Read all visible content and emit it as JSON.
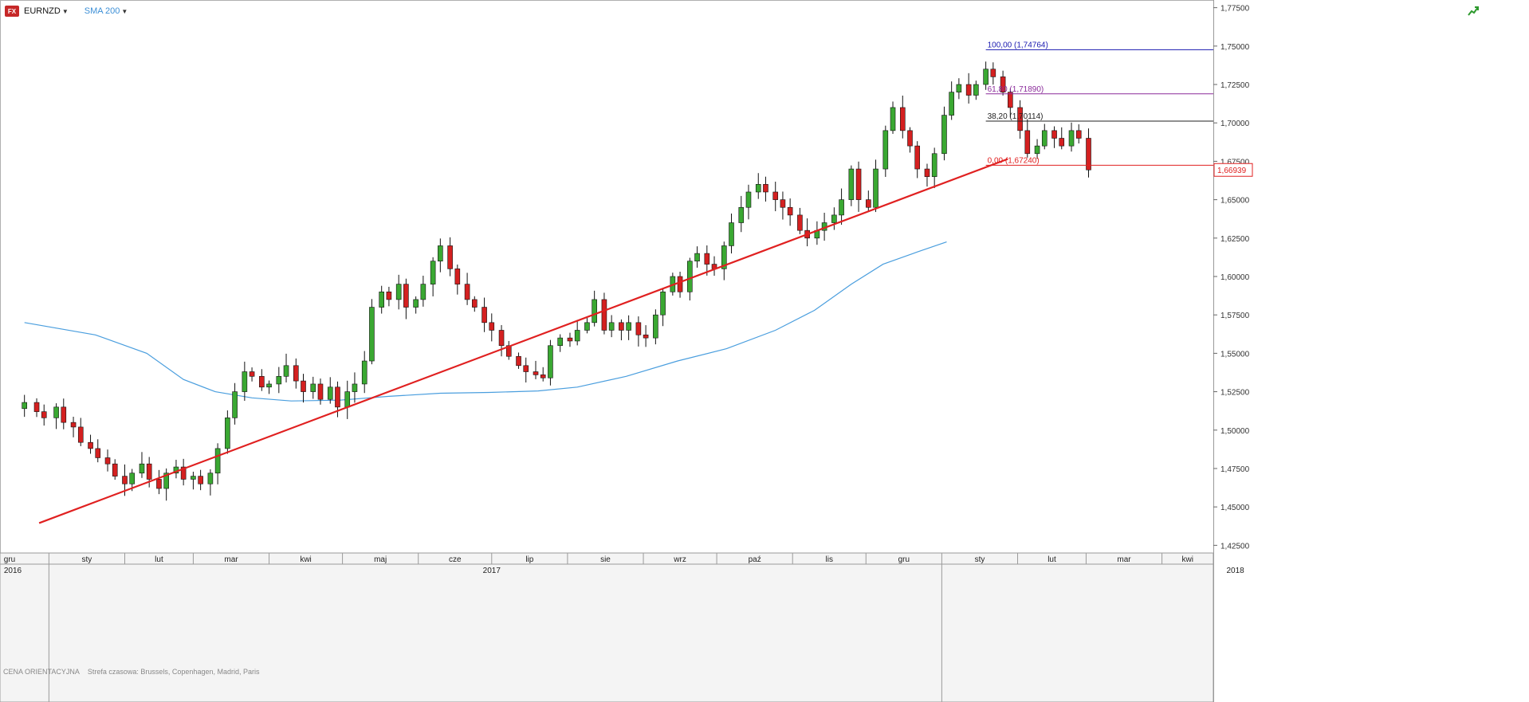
{
  "toolbar": {
    "fx_badge": "FX",
    "symbol": "EURNZD",
    "indicator": "SMA 200"
  },
  "footer": {
    "price_mode": "CENA ORIENTACYJNA",
    "timezone": "Strefa czasowa: Brussels, Copenhagen, Madrid, Paris"
  },
  "colors": {
    "bull": "#3aa832",
    "bear": "#d42020",
    "sma": "#4a9ede",
    "trendline": "#e02020",
    "fib_100": "#1a1ab0",
    "fib_618": "#8a2a9a",
    "fib_382": "#222222",
    "fib_0": "#e02020",
    "price_tag": "#e02020"
  },
  "chart_data": {
    "type": "candlestick",
    "ylim": [
      1.42,
      1.78
    ],
    "y_ticks": [
      "1,42500",
      "1,45000",
      "1,47500",
      "1,50000",
      "1,52500",
      "1,55000",
      "1,57500",
      "1,60000",
      "1,62500",
      "1,65000",
      "1,67500",
      "1,70000",
      "1,72500",
      "1,75000",
      "1,77500"
    ],
    "last_price": "1,66939",
    "fibonacci": [
      {
        "label": "100,00 (1,74764)",
        "value": 1.74764,
        "color": "#1a1ab0"
      },
      {
        "label": "61,80 (1,71890)",
        "value": 1.7189,
        "color": "#8a2a9a"
      },
      {
        "label": "38,20 (1,70114)",
        "value": 1.70114,
        "color": "#222222"
      },
      {
        "label": "0,00 (1,67240)",
        "value": 1.6724,
        "color": "#e02020"
      }
    ],
    "trendline": {
      "from": {
        "date": "2016-12-28",
        "value": 1.4395
      },
      "to": {
        "date": "2018-01-28",
        "value": 1.6765
      }
    },
    "sma": [
      [
        "2016-12-22",
        1.57
      ],
      [
        "2017-01-20",
        1.562
      ],
      [
        "2017-02-10",
        1.55
      ],
      [
        "2017-02-25",
        1.533
      ],
      [
        "2017-03-10",
        1.525
      ],
      [
        "2017-03-25",
        1.521
      ],
      [
        "2017-04-10",
        1.519
      ],
      [
        "2017-04-30",
        1.5195
      ],
      [
        "2017-05-20",
        1.522
      ],
      [
        "2017-06-10",
        1.524
      ],
      [
        "2017-06-30",
        1.5245
      ],
      [
        "2017-07-20",
        1.5255
      ],
      [
        "2017-08-05",
        1.528
      ],
      [
        "2017-08-25",
        1.535
      ],
      [
        "2017-09-15",
        1.545
      ],
      [
        "2017-10-05",
        1.553
      ],
      [
        "2017-10-25",
        1.565
      ],
      [
        "2017-11-10",
        1.578
      ],
      [
        "2017-11-25",
        1.595
      ],
      [
        "2017-12-08",
        1.608
      ],
      [
        "2017-12-22",
        1.616
      ],
      [
        "2018-01-03",
        1.6225
      ]
    ],
    "candles_close": [
      [
        "2016-12-22",
        1.518
      ],
      [
        "2016-12-27",
        1.512
      ],
      [
        "2016-12-30",
        1.508
      ],
      [
        "2017-01-04",
        1.515
      ],
      [
        "2017-01-07",
        1.505
      ],
      [
        "2017-01-11",
        1.502
      ],
      [
        "2017-01-14",
        1.492
      ],
      [
        "2017-01-18",
        1.488
      ],
      [
        "2017-01-21",
        1.482
      ],
      [
        "2017-01-25",
        1.478
      ],
      [
        "2017-01-28",
        1.47
      ],
      [
        "2017-02-01",
        1.465
      ],
      [
        "2017-02-04",
        1.472
      ],
      [
        "2017-02-08",
        1.478
      ],
      [
        "2017-02-11",
        1.468
      ],
      [
        "2017-02-15",
        1.462
      ],
      [
        "2017-02-18",
        1.472
      ],
      [
        "2017-02-22",
        1.476
      ],
      [
        "2017-02-25",
        1.468
      ],
      [
        "2017-03-01",
        1.47
      ],
      [
        "2017-03-04",
        1.465
      ],
      [
        "2017-03-08",
        1.472
      ],
      [
        "2017-03-11",
        1.488
      ],
      [
        "2017-03-15",
        1.508
      ],
      [
        "2017-03-18",
        1.525
      ],
      [
        "2017-03-22",
        1.538
      ],
      [
        "2017-03-25",
        1.535
      ],
      [
        "2017-03-29",
        1.528
      ],
      [
        "2017-04-01",
        1.53
      ],
      [
        "2017-04-05",
        1.535
      ],
      [
        "2017-04-08",
        1.542
      ],
      [
        "2017-04-12",
        1.532
      ],
      [
        "2017-04-15",
        1.525
      ],
      [
        "2017-04-19",
        1.53
      ],
      [
        "2017-04-22",
        1.52
      ],
      [
        "2017-04-26",
        1.528
      ],
      [
        "2017-04-29",
        1.515
      ],
      [
        "2017-05-03",
        1.525
      ],
      [
        "2017-05-06",
        1.53
      ],
      [
        "2017-05-10",
        1.545
      ],
      [
        "2017-05-13",
        1.58
      ],
      [
        "2017-05-17",
        1.59
      ],
      [
        "2017-05-20",
        1.585
      ],
      [
        "2017-05-24",
        1.595
      ],
      [
        "2017-05-27",
        1.58
      ],
      [
        "2017-05-31",
        1.585
      ],
      [
        "2017-06-03",
        1.595
      ],
      [
        "2017-06-07",
        1.61
      ],
      [
        "2017-06-10",
        1.62
      ],
      [
        "2017-06-14",
        1.605
      ],
      [
        "2017-06-17",
        1.595
      ],
      [
        "2017-06-21",
        1.585
      ],
      [
        "2017-06-24",
        1.58
      ],
      [
        "2017-06-28",
        1.57
      ],
      [
        "2017-07-01",
        1.565
      ],
      [
        "2017-07-05",
        1.555
      ],
      [
        "2017-07-08",
        1.548
      ],
      [
        "2017-07-12",
        1.542
      ],
      [
        "2017-07-15",
        1.538
      ],
      [
        "2017-07-19",
        1.536
      ],
      [
        "2017-07-22",
        1.534
      ],
      [
        "2017-07-25",
        1.555
      ],
      [
        "2017-07-29",
        1.56
      ],
      [
        "2017-08-02",
        1.558
      ],
      [
        "2017-08-05",
        1.565
      ],
      [
        "2017-08-09",
        1.57
      ],
      [
        "2017-08-12",
        1.585
      ],
      [
        "2017-08-16",
        1.565
      ],
      [
        "2017-08-19",
        1.57
      ],
      [
        "2017-08-23",
        1.565
      ],
      [
        "2017-08-26",
        1.57
      ],
      [
        "2017-08-30",
        1.562
      ],
      [
        "2017-09-02",
        1.56
      ],
      [
        "2017-09-06",
        1.575
      ],
      [
        "2017-09-09",
        1.59
      ],
      [
        "2017-09-13",
        1.6
      ],
      [
        "2017-09-16",
        1.59
      ],
      [
        "2017-09-20",
        1.61
      ],
      [
        "2017-09-23",
        1.615
      ],
      [
        "2017-09-27",
        1.608
      ],
      [
        "2017-09-30",
        1.605
      ],
      [
        "2017-10-04",
        1.62
      ],
      [
        "2017-10-07",
        1.635
      ],
      [
        "2017-10-11",
        1.645
      ],
      [
        "2017-10-14",
        1.655
      ],
      [
        "2017-10-18",
        1.66
      ],
      [
        "2017-10-21",
        1.655
      ],
      [
        "2017-10-25",
        1.65
      ],
      [
        "2017-10-28",
        1.645
      ],
      [
        "2017-10-31",
        1.64
      ],
      [
        "2017-11-04",
        1.63
      ],
      [
        "2017-11-07",
        1.625
      ],
      [
        "2017-11-11",
        1.63
      ],
      [
        "2017-11-14",
        1.635
      ],
      [
        "2017-11-18",
        1.64
      ],
      [
        "2017-11-21",
        1.65
      ],
      [
        "2017-11-25",
        1.67
      ],
      [
        "2017-11-28",
        1.65
      ],
      [
        "2017-12-02",
        1.645
      ],
      [
        "2017-12-05",
        1.67
      ],
      [
        "2017-12-09",
        1.695
      ],
      [
        "2017-12-12",
        1.71
      ],
      [
        "2017-12-16",
        1.695
      ],
      [
        "2017-12-19",
        1.685
      ],
      [
        "2017-12-22",
        1.67
      ],
      [
        "2017-12-26",
        1.665
      ],
      [
        "2017-12-29",
        1.68
      ],
      [
        "2018-01-02",
        1.705
      ],
      [
        "2018-01-05",
        1.72
      ],
      [
        "2018-01-08",
        1.725
      ],
      [
        "2018-01-12",
        1.718
      ],
      [
        "2018-01-15",
        1.725
      ],
      [
        "2018-01-19",
        1.735
      ],
      [
        "2018-01-22",
        1.73
      ],
      [
        "2018-01-26",
        1.72
      ],
      [
        "2018-01-29",
        1.71
      ],
      [
        "2018-02-02",
        1.695
      ],
      [
        "2018-02-05",
        1.68
      ],
      [
        "2018-02-09",
        1.685
      ],
      [
        "2018-02-12",
        1.695
      ],
      [
        "2018-02-16",
        1.69
      ],
      [
        "2018-02-19",
        1.685
      ],
      [
        "2018-02-23",
        1.695
      ],
      [
        "2018-02-26",
        1.69
      ],
      [
        "2018-03-02",
        1.6694
      ]
    ],
    "x_axis": {
      "months": [
        {
          "label": "gru",
          "date": "2016-12-15"
        },
        {
          "label": "sty",
          "date": "2017-01-01"
        },
        {
          "label": "lut",
          "date": "2017-02-01"
        },
        {
          "label": "mar",
          "date": "2017-03-01"
        },
        {
          "label": "kwi",
          "date": "2017-04-01"
        },
        {
          "label": "maj",
          "date": "2017-05-01"
        },
        {
          "label": "cze",
          "date": "2017-06-01"
        },
        {
          "label": "lip",
          "date": "2017-07-01"
        },
        {
          "label": "sie",
          "date": "2017-08-01"
        },
        {
          "label": "wrz",
          "date": "2017-09-01"
        },
        {
          "label": "paź",
          "date": "2017-10-01"
        },
        {
          "label": "lis",
          "date": "2017-11-01"
        },
        {
          "label": "gru",
          "date": "2017-12-01"
        },
        {
          "label": "sty",
          "date": "2018-01-01"
        },
        {
          "label": "lut",
          "date": "2018-02-01"
        },
        {
          "label": "mar",
          "date": "2018-03-01"
        },
        {
          "label": "kwi",
          "date": "2018-04-01"
        }
      ],
      "years": [
        {
          "label": "2016",
          "date": "2016-12-20"
        },
        {
          "label": "2017",
          "date": "2017-07-01"
        },
        {
          "label": "2018",
          "date": "2018-05-01"
        }
      ]
    }
  }
}
